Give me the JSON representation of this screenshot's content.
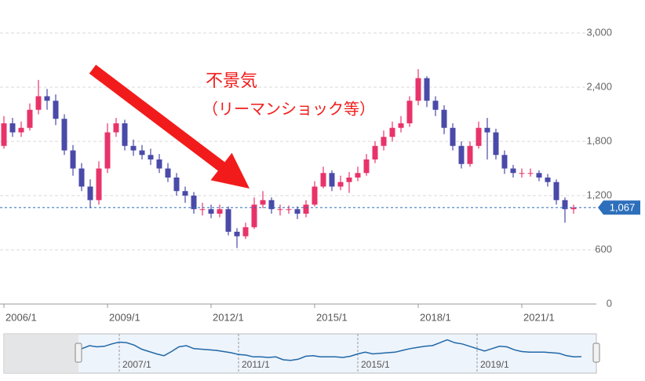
{
  "chart_data": {
    "type": "candlestick",
    "annotation": [
      "不景気",
      "（リーマンショック等）"
    ],
    "x": [
      "2005/10",
      "2006/1",
      "2006/4",
      "2006/7",
      "2006/10",
      "2007/1",
      "2007/4",
      "2007/7",
      "2007/10",
      "2008/1",
      "2008/4",
      "2008/7",
      "2008/10",
      "2009/1",
      "2009/4",
      "2009/7",
      "2009/10",
      "2010/1",
      "2010/4",
      "2010/7",
      "2010/10",
      "2011/1",
      "2011/4",
      "2011/7",
      "2011/10",
      "2012/1",
      "2012/4",
      "2012/7",
      "2012/10",
      "2013/1",
      "2013/4",
      "2013/7",
      "2013/10",
      "2014/1",
      "2014/4",
      "2014/7",
      "2014/10",
      "2015/1",
      "2015/4",
      "2015/7",
      "2015/10",
      "2016/1",
      "2016/4",
      "2016/7",
      "2016/10",
      "2017/1",
      "2017/4",
      "2017/7",
      "2017/10",
      "2018/1",
      "2018/4",
      "2018/7",
      "2018/10",
      "2019/1",
      "2019/4",
      "2019/7",
      "2019/10",
      "2020/1",
      "2020/4",
      "2020/7",
      "2020/10",
      "2021/1",
      "2021/4",
      "2021/7",
      "2021/10",
      "2022/1",
      "2022/4",
      "2022/7"
    ],
    "open": [
      1700,
      1750,
      2000,
      1900,
      1950,
      2150,
      2300,
      2250,
      2050,
      1700,
      1500,
      1300,
      1150,
      1500,
      1900,
      2000,
      1750,
      1700,
      1650,
      1600,
      1500,
      1400,
      1250,
      1200,
      1050,
      1050,
      1000,
      1050,
      800,
      750,
      850,
      1100,
      1150,
      1050,
      1050,
      1050,
      1000,
      1100,
      1300,
      1450,
      1300,
      1350,
      1400,
      1450,
      1600,
      1750,
      1850,
      1950,
      2000,
      2250,
      2500,
      2250,
      2150,
      1950,
      1750,
      1550,
      1750,
      1950,
      1900,
      1650,
      1500,
      1450,
      1450,
      1450,
      1400,
      1350,
      1150,
      1050
    ],
    "high": [
      1800,
      2080,
      2060,
      2020,
      2220,
      2480,
      2380,
      2320,
      2100,
      1760,
      1560,
      1380,
      1580,
      2000,
      2060,
      2040,
      1820,
      1760,
      1720,
      1660,
      1560,
      1450,
      1300,
      1240,
      1120,
      1100,
      1100,
      1080,
      840,
      900,
      1180,
      1250,
      1180,
      1100,
      1090,
      1080,
      1150,
      1360,
      1520,
      1480,
      1420,
      1460,
      1520,
      1660,
      1800,
      1920,
      2020,
      2080,
      2300,
      2600,
      2520,
      2300,
      2200,
      2000,
      1800,
      1800,
      2020,
      2060,
      1940,
      1700,
      1540,
      1500,
      1500,
      1480,
      1440,
      1380,
      1180,
      1100
    ],
    "low": [
      1650,
      1720,
      1850,
      1850,
      1920,
      2100,
      2150,
      1980,
      1650,
      1420,
      1250,
      1060,
      1100,
      1450,
      1850,
      1700,
      1640,
      1600,
      1540,
      1450,
      1350,
      1200,
      1120,
      1000,
      980,
      950,
      960,
      760,
      620,
      720,
      830,
      1060,
      1000,
      980,
      1000,
      940,
      960,
      1080,
      1280,
      1250,
      1260,
      1230,
      1360,
      1420,
      1560,
      1700,
      1800,
      1900,
      1960,
      2200,
      2180,
      2080,
      1880,
      1700,
      1500,
      1520,
      1720,
      1600,
      1600,
      1440,
      1400,
      1400,
      1410,
      1360,
      1300,
      1100,
      900,
      1000
    ],
    "close": [
      1750,
      2000,
      1900,
      1950,
      2150,
      2300,
      2250,
      2050,
      1700,
      1500,
      1300,
      1150,
      1500,
      1900,
      2000,
      1750,
      1700,
      1650,
      1600,
      1500,
      1400,
      1250,
      1200,
      1050,
      1050,
      1000,
      1050,
      800,
      750,
      850,
      1100,
      1150,
      1050,
      1050,
      1050,
      1000,
      1100,
      1300,
      1450,
      1300,
      1350,
      1400,
      1450,
      1600,
      1750,
      1850,
      1950,
      2000,
      2250,
      2500,
      2250,
      2150,
      1950,
      1750,
      1550,
      1750,
      1950,
      1900,
      1650,
      1500,
      1450,
      1450,
      1450,
      1400,
      1350,
      1150,
      1050,
      1067
    ],
    "up_color": "#e8336a",
    "down_color": "#4a4aa8",
    "ylim": [
      0,
      3000
    ],
    "yticks": [
      0,
      600,
      {
        "value": 1200,
        "label": "1,200"
      },
      {
        "value": 1800,
        "label": "1,800"
      },
      {
        "value": 2400,
        "label": "2,400"
      },
      {
        "value": 3000,
        "label": "3,000"
      }
    ],
    "xticks": [
      "2006/1",
      "2009/1",
      "2012/1",
      "2015/1",
      "2018/1",
      "2021/1"
    ],
    "last_value": {
      "value": 1067,
      "label": "1,067"
    },
    "last_color": "#2d6fbb",
    "grid": true,
    "navigator": {
      "xticks": [
        "2007/1",
        "2011/1",
        "2015/1",
        "2019/1"
      ],
      "color": "#2068a8"
    }
  }
}
